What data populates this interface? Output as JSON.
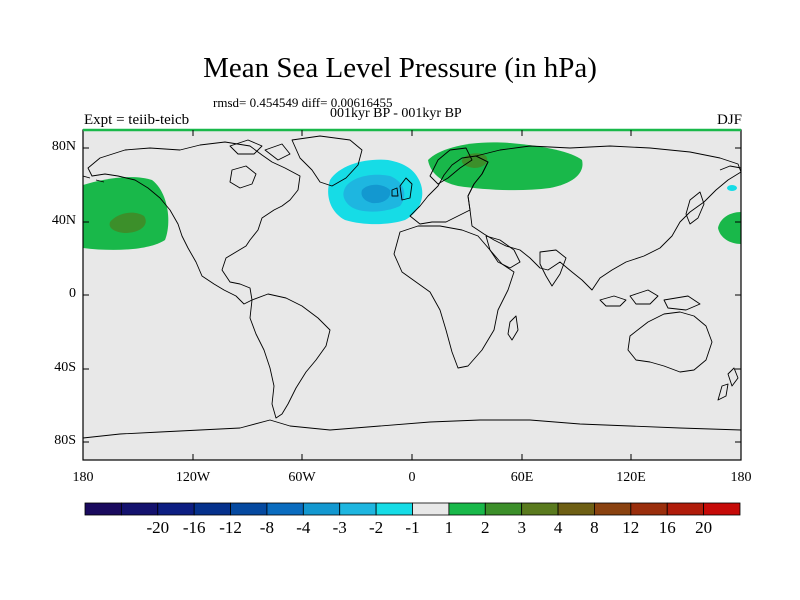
{
  "title": "Mean Sea Level Pressure (in hPa)",
  "stats_line": "rmsd= 0.454549 diff= 0.00616455",
  "period_line": "001kyr BP - 001kyr BP",
  "left_label": "Expt = teiib-teicb",
  "right_label": "DJF",
  "y_ticks": [
    "80N",
    "40N",
    "0",
    "40S",
    "80S"
  ],
  "x_ticks": [
    "180",
    "120W",
    "60W",
    "0",
    "60E",
    "120E",
    "180"
  ],
  "colorbar": {
    "labels": [
      "-20",
      "-16",
      "-12",
      "-8",
      "-4",
      "-3",
      "-2",
      "-1",
      "1",
      "2",
      "3",
      "4",
      "8",
      "12",
      "16",
      "20"
    ],
    "colors": [
      "#1a0a5e",
      "#14126e",
      "#0d1e82",
      "#05318c",
      "#0549a0",
      "#0a6cbf",
      "#1398d0",
      "#1eb6e0",
      "#16dce6",
      "#e8e8e8",
      "#19b84a",
      "#3c8f2a",
      "#5a7a1e",
      "#6e5f14",
      "#8a4210",
      "#9a2e0c",
      "#b01c0a",
      "#c60a08"
    ]
  },
  "colors": {
    "ocean_land_bg": "#e8e8e8",
    "coast": "#000000"
  }
}
